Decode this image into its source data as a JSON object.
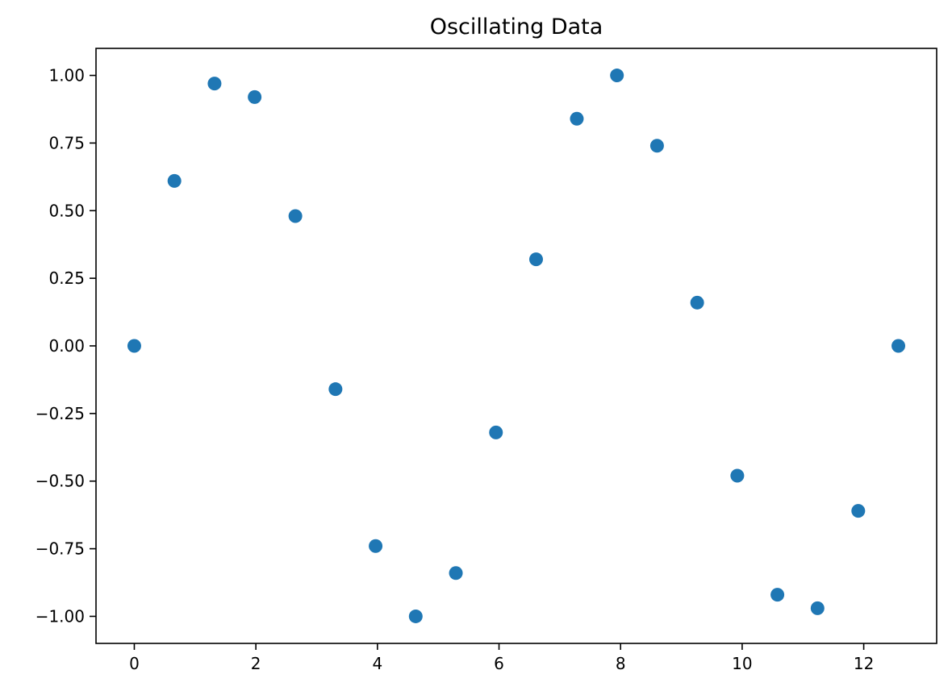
{
  "chart_data": {
    "type": "scatter",
    "title": "Oscillating Data",
    "xlabel": "",
    "ylabel": "",
    "xlim": [
      -0.63,
      13.2
    ],
    "ylim": [
      -1.1,
      1.1
    ],
    "x_ticks": [
      0,
      2,
      4,
      6,
      8,
      10,
      12
    ],
    "x_tick_labels": [
      "0",
      "2",
      "4",
      "6",
      "8",
      "10",
      "12"
    ],
    "y_ticks": [
      1.0,
      0.75,
      0.5,
      0.25,
      0.0,
      -0.25,
      -0.5,
      -0.75,
      -1.0
    ],
    "y_tick_labels": [
      "1.00",
      "0.75",
      "0.50",
      "0.25",
      "0.00",
      "−0.25",
      "−0.50",
      "−0.75",
      "−1.00"
    ],
    "grid": false,
    "legend": "none",
    "marker_color": "#1f77b4",
    "series": [
      {
        "x": [
          0.0,
          0.66,
          1.32,
          1.98,
          2.65,
          3.31,
          3.97,
          4.63,
          5.29,
          5.95,
          6.61,
          7.28,
          7.94,
          8.6,
          9.26,
          9.92,
          10.58,
          11.24,
          11.91,
          12.57
        ],
        "y": [
          0.0,
          0.61,
          0.97,
          0.92,
          0.48,
          -0.16,
          -0.74,
          -1.0,
          -0.84,
          -0.32,
          0.32,
          0.84,
          1.0,
          0.74,
          0.16,
          -0.48,
          -0.92,
          -0.97,
          -0.61,
          0.0
        ]
      }
    ]
  }
}
